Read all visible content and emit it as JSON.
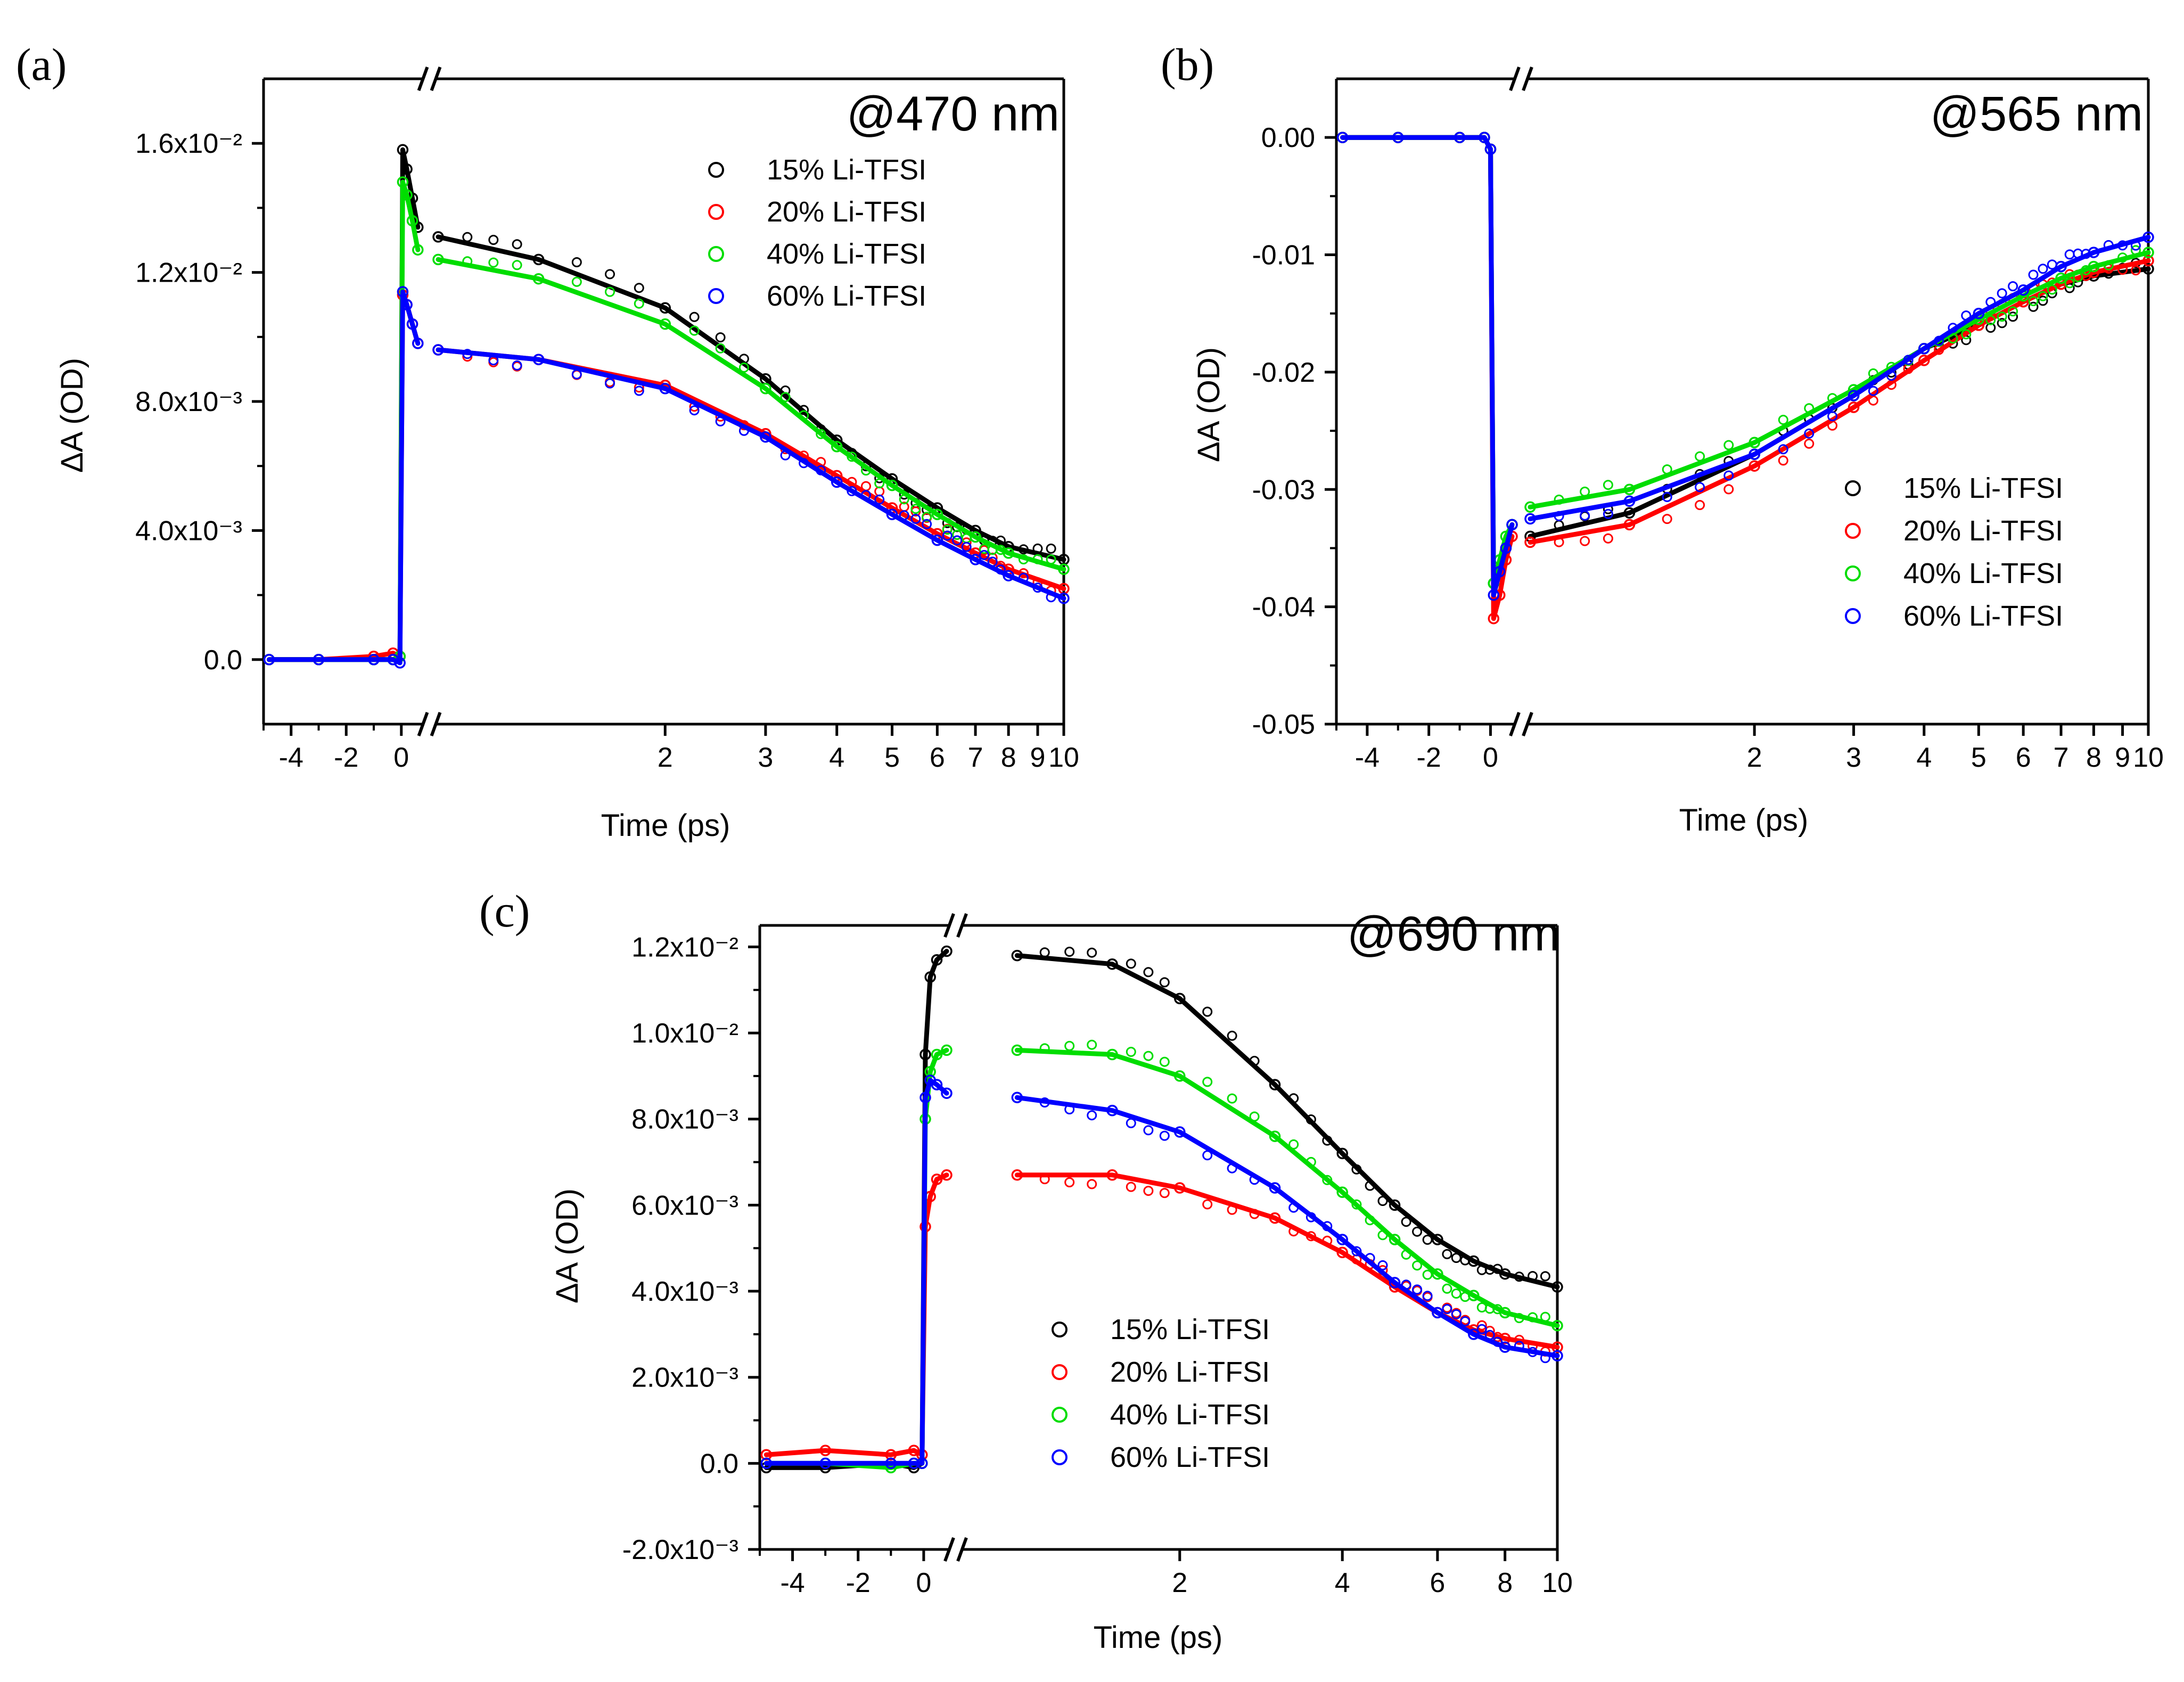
{
  "chart_data": [
    {
      "type": "line",
      "id": "a",
      "panel_label": "(a)",
      "title": "@470 nm",
      "xlabel": "Time (ps)",
      "ylabel": "ΔA (OD)",
      "xaxis": {
        "segments": [
          "linear -5..0.7",
          "log 0.8..10"
        ],
        "break": "after 0.7"
      },
      "ylim": [
        -0.002,
        0.018
      ],
      "yticks": [
        0,
        0.004,
        0.008,
        0.012,
        0.016
      ],
      "ytick_labels": [
        "0.0",
        "4.0x10⁻³",
        "8.0x10⁻³",
        "1.2x10⁻²",
        "1.6x10⁻²"
      ],
      "xticks": [
        -4,
        -2,
        0,
        2,
        3,
        4,
        5,
        6,
        7,
        8,
        9,
        10
      ],
      "xtick_labels": [
        "-4",
        "-2",
        "0",
        "2",
        "3",
        "4",
        "5",
        "6",
        "7",
        "8",
        "9",
        "10"
      ],
      "legend": {
        "position": "top-right",
        "entries": [
          "15% Li-TFSI",
          "20% Li-TFSI",
          "40% Li-TFSI",
          "60% Li-TFSI"
        ]
      },
      "series": [
        {
          "name": "15% Li-TFSI",
          "color": "#000000",
          "x": [
            -4.8,
            -3,
            -1,
            -0.3,
            -0.05,
            0.05,
            0.2,
            0.4,
            0.6,
            0.8,
            1.2,
            2,
            3,
            4,
            5,
            6,
            7,
            8,
            10
          ],
          "y": [
            0,
            0,
            0,
            0,
            0.0001,
            0.0158,
            0.0152,
            0.0143,
            0.0134,
            0.0131,
            0.0124,
            0.0109,
            0.0087,
            0.0068,
            0.0056,
            0.0047,
            0.004,
            0.0035,
            0.0031
          ]
        },
        {
          "name": "20% Li-TFSI",
          "color": "#ff0000",
          "x": [
            -4.8,
            -3,
            -1,
            -0.3,
            -0.05,
            0.05,
            0.2,
            0.4,
            0.6,
            0.8,
            1.2,
            2,
            3,
            4,
            5,
            6,
            7,
            8,
            10
          ],
          "y": [
            0,
            0,
            0.0001,
            0.0002,
            0.0001,
            0.0113,
            0.011,
            0.0104,
            0.0098,
            0.0096,
            0.0093,
            0.0085,
            0.007,
            0.0057,
            0.0047,
            0.0039,
            0.0033,
            0.0028,
            0.0022
          ]
        },
        {
          "name": "40% Li-TFSI",
          "color": "#00dd00",
          "x": [
            -4.8,
            -3,
            -1,
            -0.3,
            -0.05,
            0.05,
            0.2,
            0.4,
            0.6,
            0.8,
            1.2,
            2,
            3,
            4,
            5,
            6,
            7,
            8,
            10
          ],
          "y": [
            0,
            0,
            0,
            0,
            0.0001,
            0.0148,
            0.0144,
            0.0136,
            0.0127,
            0.0124,
            0.0118,
            0.0104,
            0.0084,
            0.0066,
            0.0054,
            0.0045,
            0.0038,
            0.0033,
            0.0028
          ]
        },
        {
          "name": "60% Li-TFSI",
          "color": "#0000ff",
          "x": [
            -4.8,
            -3,
            -1,
            -0.3,
            -0.05,
            0.05,
            0.2,
            0.4,
            0.6,
            0.8,
            1.2,
            2,
            3,
            4,
            5,
            6,
            7,
            8,
            10
          ],
          "y": [
            0,
            0,
            0,
            0,
            -0.0001,
            0.0114,
            0.011,
            0.0104,
            0.0098,
            0.0096,
            0.0093,
            0.0084,
            0.0069,
            0.0055,
            0.0045,
            0.0037,
            0.0031,
            0.0026,
            0.0019
          ]
        }
      ]
    },
    {
      "type": "line",
      "id": "b",
      "panel_label": "(b)",
      "title": "@565 nm",
      "xlabel": "Time (ps)",
      "ylabel": "ΔA (OD)",
      "xaxis": {
        "segments": [
          "linear -5..0.7",
          "log 0.8..10"
        ],
        "break": "after 0.7"
      },
      "ylim": [
        -0.05,
        0.005
      ],
      "yticks": [
        0,
        -0.01,
        -0.02,
        -0.03,
        -0.04,
        -0.05
      ],
      "ytick_labels": [
        "0.00",
        "-0.01",
        "-0.02",
        "-0.03",
        "-0.04",
        "-0.05"
      ],
      "xticks": [
        -4,
        -2,
        0,
        2,
        3,
        4,
        5,
        6,
        7,
        8,
        9,
        10
      ],
      "xtick_labels": [
        "-4",
        "-2",
        "0",
        "2",
        "3",
        "4",
        "5",
        "6",
        "7",
        "8",
        "9",
        "10"
      ],
      "legend": {
        "position": "center-right",
        "entries": [
          "15% Li-TFSI",
          "20% Li-TFSI",
          "40% Li-TFSI",
          "60% Li-TFSI"
        ]
      },
      "series": [
        {
          "name": "15% Li-TFSI",
          "color": "#000000",
          "x": [
            -4.8,
            -3,
            -1,
            -0.2,
            0,
            0.1,
            0.3,
            0.5,
            0.7,
            0.8,
            1.2,
            2,
            3,
            4,
            5,
            6,
            7,
            8,
            10
          ],
          "y": [
            0,
            0,
            0,
            0,
            -0.001,
            -0.038,
            -0.037,
            -0.035,
            -0.033,
            -0.034,
            -0.032,
            -0.027,
            -0.022,
            -0.018,
            -0.016,
            -0.014,
            -0.0125,
            -0.0118,
            -0.0112
          ]
        },
        {
          "name": "20% Li-TFSI",
          "color": "#ff0000",
          "x": [
            -4.8,
            -3,
            -1,
            -0.2,
            0,
            0.1,
            0.3,
            0.5,
            0.7,
            0.8,
            1.2,
            2,
            3,
            4,
            5,
            6,
            7,
            8,
            10
          ],
          "y": [
            0,
            0,
            0,
            0,
            -0.001,
            -0.041,
            -0.039,
            -0.036,
            -0.034,
            -0.0345,
            -0.033,
            -0.028,
            -0.023,
            -0.019,
            -0.016,
            -0.014,
            -0.0125,
            -0.0115,
            -0.0105
          ]
        },
        {
          "name": "40% Li-TFSI",
          "color": "#00dd00",
          "x": [
            -4.8,
            -3,
            -1,
            -0.2,
            0,
            0.1,
            0.3,
            0.5,
            0.7,
            0.8,
            1.2,
            2,
            3,
            4,
            5,
            6,
            7,
            8,
            10
          ],
          "y": [
            0,
            0,
            0,
            0,
            -0.001,
            -0.038,
            -0.036,
            -0.034,
            -0.033,
            -0.0315,
            -0.03,
            -0.026,
            -0.0215,
            -0.018,
            -0.0155,
            -0.0135,
            -0.012,
            -0.011,
            -0.0098
          ]
        },
        {
          "name": "60% Li-TFSI",
          "color": "#0000ff",
          "x": [
            -4.8,
            -3,
            -1,
            -0.2,
            0,
            0.1,
            0.3,
            0.5,
            0.7,
            0.8,
            1.2,
            2,
            3,
            4,
            5,
            6,
            7,
            8,
            10
          ],
          "y": [
            0,
            0,
            0,
            0,
            -0.001,
            -0.039,
            -0.037,
            -0.035,
            -0.033,
            -0.0325,
            -0.031,
            -0.027,
            -0.022,
            -0.018,
            -0.015,
            -0.013,
            -0.011,
            -0.0098,
            -0.0085
          ]
        }
      ]
    },
    {
      "type": "line",
      "id": "c",
      "panel_label": "(c)",
      "title": "@690 nm",
      "xlabel": "Time (ps)",
      "ylabel": "ΔA (OD)",
      "xaxis": {
        "segments": [
          "linear -5..0.7",
          "log 0.8..10"
        ],
        "break": "after 0.7"
      },
      "ylim": [
        -0.002,
        0.0125
      ],
      "yticks": [
        -0.002,
        0,
        0.002,
        0.004,
        0.006,
        0.008,
        0.01,
        0.012
      ],
      "ytick_labels": [
        "-2.0x10⁻³",
        "0.0",
        "2.0x10⁻³",
        "4.0x10⁻³",
        "6.0x10⁻³",
        "8.0x10⁻³",
        "1.0x10⁻²",
        "1.2x10⁻²"
      ],
      "xticks": [
        -4,
        -2,
        0,
        2,
        4,
        6,
        8,
        10
      ],
      "xtick_labels": [
        "-4",
        "-2",
        "0",
        "2",
        "4",
        "6",
        "8",
        "10"
      ],
      "legend": {
        "position": "bottom-center",
        "entries": [
          "15% Li-TFSI",
          "20% Li-TFSI",
          "40% Li-TFSI",
          "60% Li-TFSI"
        ]
      },
      "series": [
        {
          "name": "15% Li-TFSI",
          "color": "#000000",
          "x": [
            -4.8,
            -3,
            -1,
            -0.3,
            -0.05,
            0.05,
            0.2,
            0.4,
            0.7,
            1,
            1.5,
            2,
            3,
            4,
            5,
            6,
            7,
            8,
            10
          ],
          "y": [
            -0.0001,
            -0.0001,
            0,
            -0.0001,
            0,
            0.0095,
            0.0113,
            0.0117,
            0.0119,
            0.0118,
            0.0116,
            0.0108,
            0.0088,
            0.0072,
            0.006,
            0.0052,
            0.0047,
            0.0044,
            0.0041
          ]
        },
        {
          "name": "20% Li-TFSI",
          "color": "#ff0000",
          "x": [
            -4.8,
            -3,
            -1,
            -0.3,
            -0.05,
            0.05,
            0.2,
            0.4,
            0.7,
            1,
            1.5,
            2,
            3,
            4,
            5,
            6,
            7,
            8,
            10
          ],
          "y": [
            0.0002,
            0.0003,
            0.0002,
            0.0003,
            0.0002,
            0.0055,
            0.0062,
            0.0066,
            0.0067,
            0.0067,
            0.0067,
            0.0064,
            0.0057,
            0.0049,
            0.0041,
            0.0035,
            0.0031,
            0.0029,
            0.0027
          ]
        },
        {
          "name": "40% Li-TFSI",
          "color": "#00dd00",
          "x": [
            -4.8,
            -3,
            -1,
            -0.3,
            -0.05,
            0.05,
            0.2,
            0.4,
            0.7,
            1,
            1.5,
            2,
            3,
            4,
            5,
            6,
            7,
            8,
            10
          ],
          "y": [
            0,
            0,
            -0.0001,
            0,
            0,
            0.008,
            0.0091,
            0.0095,
            0.0096,
            0.0096,
            0.0095,
            0.009,
            0.0076,
            0.0063,
            0.0052,
            0.0044,
            0.0039,
            0.0035,
            0.0032
          ]
        },
        {
          "name": "60% Li-TFSI",
          "color": "#0000ff",
          "x": [
            -4.8,
            -3,
            -1,
            -0.3,
            -0.05,
            0.05,
            0.2,
            0.4,
            0.7,
            1,
            1.5,
            2,
            3,
            4,
            5,
            6,
            7,
            8,
            10
          ],
          "y": [
            0,
            0,
            0,
            0,
            0,
            0.0085,
            0.0089,
            0.0088,
            0.0086,
            0.0085,
            0.0082,
            0.0077,
            0.0064,
            0.0052,
            0.0042,
            0.0035,
            0.003,
            0.0027,
            0.0025
          ]
        }
      ]
    }
  ]
}
